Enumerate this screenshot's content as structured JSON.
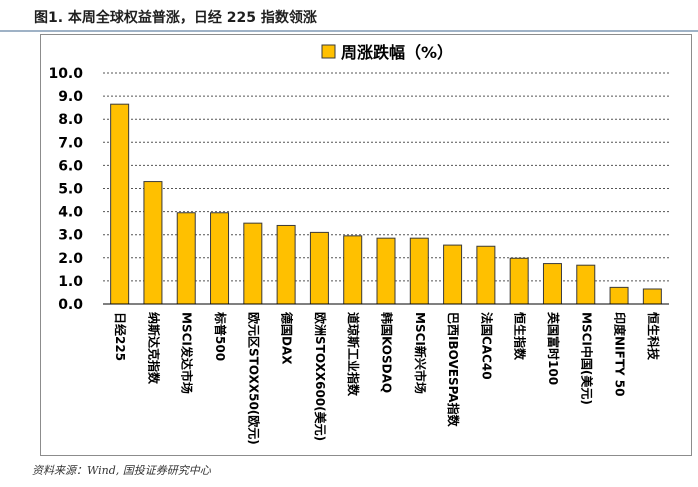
{
  "figure": {
    "title": "图1. 本周全球权益普涨，日经 225 指数领涨",
    "source": "资料来源：Wind, 国投证券研究中心"
  },
  "colors": {
    "bar_fill": "#FFC000",
    "bar_stroke": "#3a3a3a",
    "grid": "#555555",
    "title_rule": "#9fb2c6"
  },
  "chart_data": {
    "type": "bar",
    "title": "",
    "xlabel": "",
    "ylabel": "",
    "ylim": [
      0,
      10
    ],
    "yticks": [
      "0.0",
      "1.0",
      "2.0",
      "3.0",
      "4.0",
      "5.0",
      "6.0",
      "7.0",
      "8.0",
      "9.0",
      "10.0"
    ],
    "grid": true,
    "legend_position": "top-right",
    "categories": [
      "日经225",
      "纳斯达克指数",
      "MSCI发达市场",
      "标普500",
      "欧元区STOXX50(欧元)",
      "德国DAX",
      "欧洲STOXX600(美元)",
      "道琼斯工业指数",
      "韩国KOSDAQ",
      "MSCI新兴市场",
      "巴西IBOVESPA指数",
      "法国CAC40",
      "恒生指数",
      "英国富时100",
      "MSCI中国(美元)",
      "印度NIFTY 50",
      "恒生科技"
    ],
    "series": [
      {
        "name": "周涨跌幅（%）",
        "values": [
          8.65,
          5.3,
          3.95,
          3.95,
          3.5,
          3.4,
          3.1,
          2.95,
          2.85,
          2.85,
          2.55,
          2.5,
          1.98,
          1.75,
          1.68,
          0.72,
          0.65
        ]
      }
    ]
  }
}
